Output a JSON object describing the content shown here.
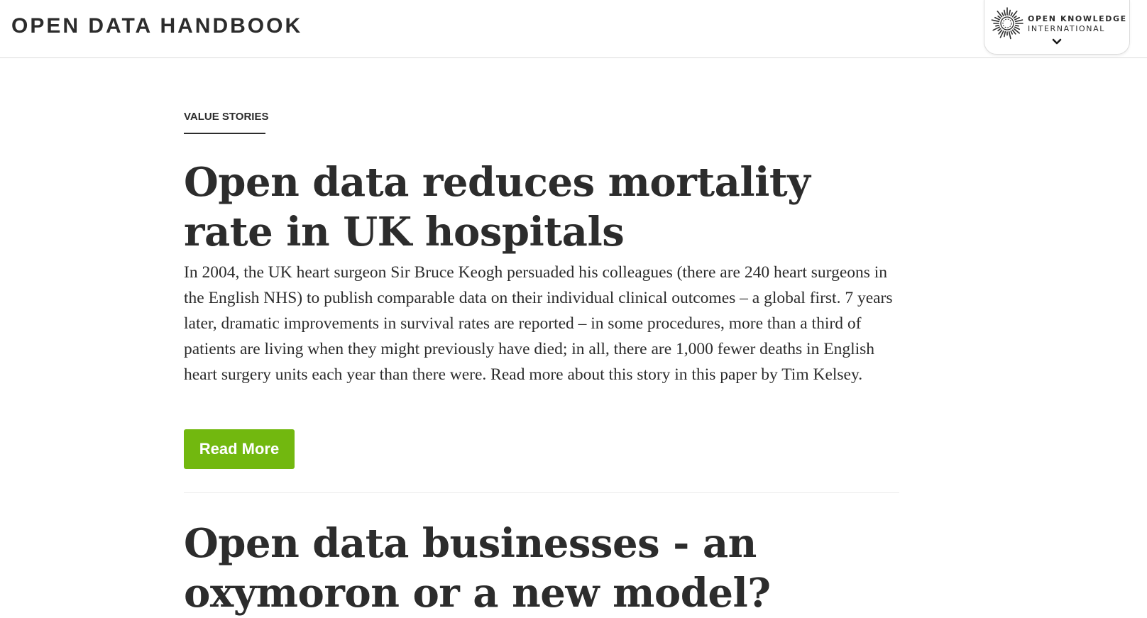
{
  "header": {
    "site_title": "OPEN DATA HANDBOOK",
    "org_menu": {
      "line1": "OPEN KNOWLEDGE",
      "line2": "INTERNATIONAL",
      "logo_icon": "sunburst-logo-icon",
      "toggle_icon": "chevron-down-icon"
    }
  },
  "main": {
    "section_label": "VALUE STORIES",
    "stories": [
      {
        "title": "Open data reduces mortality rate in UK hospitals",
        "body": "In 2004, the UK heart surgeon Sir Bruce Keogh persuaded his colleagues (there are 240 heart surgeons in the English NHS) to publish comparable data on their individual clinical outcomes – a global first. 7 years later, dramatic improvements in survival rates are reported – in some procedures, more than a third of patients are living when they might previously have died; in all, there are 1,000 fewer deaths in English heart surgery units each year than there were. Read more about this story in this paper by Tim Kelsey.",
        "button_label": "Read More"
      },
      {
        "title": "Open data businesses - an oxymoron or a new model?"
      }
    ]
  },
  "colors": {
    "text": "#2c2c2c",
    "accent_button": "#72b80f",
    "border": "#dcdcdc"
  }
}
